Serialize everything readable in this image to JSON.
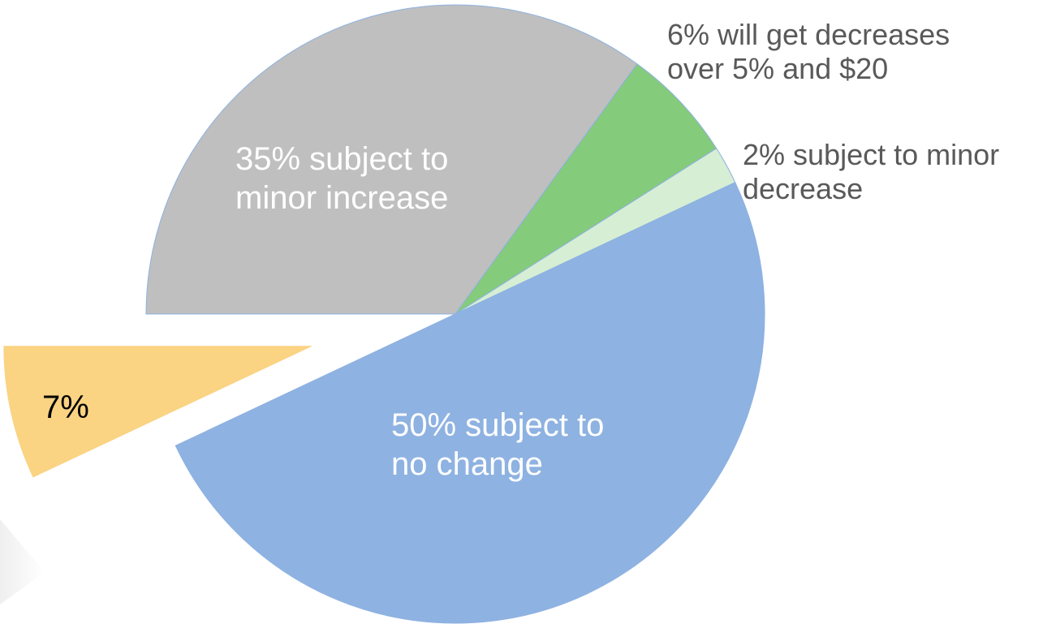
{
  "chart_data": {
    "type": "pie",
    "title": "",
    "start_angle_deg": 180,
    "direction": "clockwise",
    "slices": [
      {
        "label": "35% subject to\nminor increase",
        "value": 35,
        "color": "#bfbfbf",
        "label_color": "#ffffff",
        "label_position": "inside",
        "exploded": false
      },
      {
        "label": "6% will get decreases\nover 5% and $20",
        "value": 6,
        "color": "#84cb7b",
        "label_color": "#595959",
        "label_position": "outside",
        "exploded": false
      },
      {
        "label": "2% subject to minor\n decrease",
        "value": 2,
        "color": "#d6eed4",
        "label_color": "#595959",
        "label_position": "outside",
        "exploded": false
      },
      {
        "label": "50% subject to\nno change",
        "value": 50,
        "color": "#8eb2e1",
        "label_color": "#ffffff",
        "label_position": "inside",
        "exploded": false
      },
      {
        "label": "7%",
        "value": 7,
        "color": "#fad383",
        "label_color": "#000000",
        "label_position": "inside",
        "exploded": true
      }
    ]
  }
}
